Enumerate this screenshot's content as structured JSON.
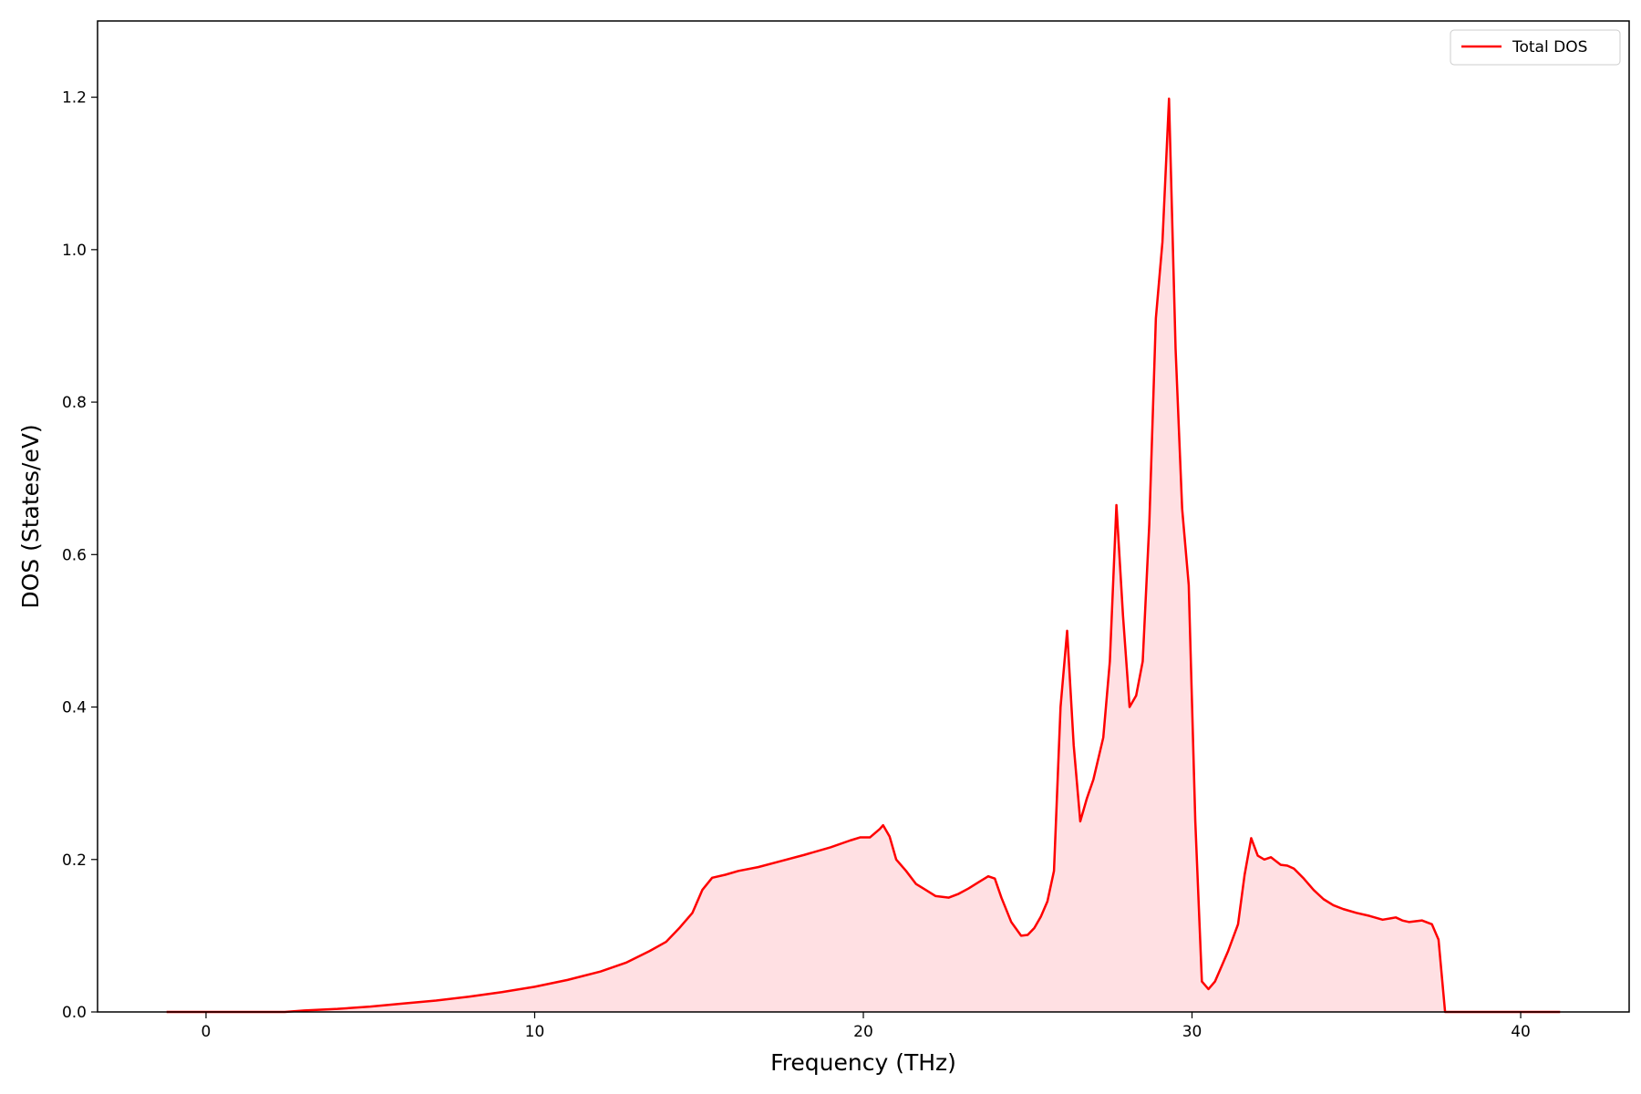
{
  "chart_data": {
    "type": "area",
    "title": "",
    "xlabel": "Frequency (THz)",
    "ylabel": "DOS (States/eV)",
    "xlim": [
      -3.3,
      43.3
    ],
    "ylim": [
      0.0,
      1.3
    ],
    "xticks": [
      0,
      10,
      20,
      30,
      40
    ],
    "yticks": [
      0.0,
      0.2,
      0.4,
      0.6,
      0.8,
      1.0,
      1.2
    ],
    "xtick_labels": [
      "0",
      "10",
      "20",
      "30",
      "40"
    ],
    "ytick_labels": [
      "0.0",
      "0.2",
      "0.4",
      "0.6",
      "0.8",
      "1.0",
      "1.2"
    ],
    "grid": false,
    "legend_position": "top-right",
    "colors": {
      "line": "#ff0000",
      "fill": "#ffe0e3"
    },
    "series": [
      {
        "name": "Total DOS",
        "x": [
          -1.2,
          0,
          1,
          2,
          2.4,
          3,
          4,
          5,
          6,
          7,
          8,
          9,
          10,
          11,
          12,
          12.8,
          13.5,
          14,
          14.4,
          14.8,
          15.1,
          15.4,
          15.8,
          16.2,
          16.8,
          17.5,
          18.2,
          19,
          19.6,
          19.9,
          20.2,
          20.5,
          20.6,
          20.8,
          21,
          21.3,
          21.6,
          21.9,
          22.2,
          22.6,
          22.9,
          23.2,
          23.5,
          23.8,
          24,
          24.2,
          24.5,
          24.8,
          25,
          25.2,
          25.4,
          25.6,
          25.8,
          26,
          26.2,
          26.4,
          26.6,
          26.8,
          27,
          27.3,
          27.5,
          27.7,
          27.9,
          28.1,
          28.3,
          28.5,
          28.7,
          28.9,
          29.1,
          29.3,
          29.5,
          29.7,
          29.9,
          30.1,
          30.3,
          30.5,
          30.7,
          30.9,
          31.1,
          31.4,
          31.6,
          31.8,
          32,
          32.2,
          32.4,
          32.7,
          32.9,
          33.1,
          33.4,
          33.7,
          34,
          34.3,
          34.6,
          35,
          35.4,
          35.8,
          36.2,
          36.4,
          36.6,
          37,
          37.3,
          37.5,
          37.7,
          37.9,
          38.1,
          40,
          41.2
        ],
        "values": [
          0.0,
          0.0,
          0.0,
          0.0,
          0.0,
          0.002,
          0.004,
          0.007,
          0.011,
          0.015,
          0.02,
          0.026,
          0.033,
          0.042,
          0.053,
          0.065,
          0.08,
          0.092,
          0.11,
          0.13,
          0.16,
          0.176,
          0.18,
          0.185,
          0.19,
          0.198,
          0.206,
          0.216,
          0.225,
          0.229,
          0.229,
          0.24,
          0.245,
          0.23,
          0.2,
          0.185,
          0.168,
          0.16,
          0.152,
          0.15,
          0.155,
          0.162,
          0.17,
          0.178,
          0.175,
          0.15,
          0.118,
          0.1,
          0.101,
          0.11,
          0.125,
          0.145,
          0.185,
          0.4,
          0.5,
          0.35,
          0.25,
          0.28,
          0.305,
          0.36,
          0.46,
          0.665,
          0.52,
          0.4,
          0.415,
          0.46,
          0.64,
          0.91,
          1.01,
          1.198,
          0.87,
          0.66,
          0.56,
          0.25,
          0.04,
          0.03,
          0.04,
          0.06,
          0.08,
          0.115,
          0.18,
          0.228,
          0.205,
          0.2,
          0.203,
          0.193,
          0.192,
          0.188,
          0.175,
          0.16,
          0.148,
          0.14,
          0.135,
          0.13,
          0.126,
          0.121,
          0.124,
          0.12,
          0.118,
          0.12,
          0.115,
          0.095,
          0.0,
          0.0,
          0.0,
          0.0,
          0.0
        ]
      }
    ]
  }
}
